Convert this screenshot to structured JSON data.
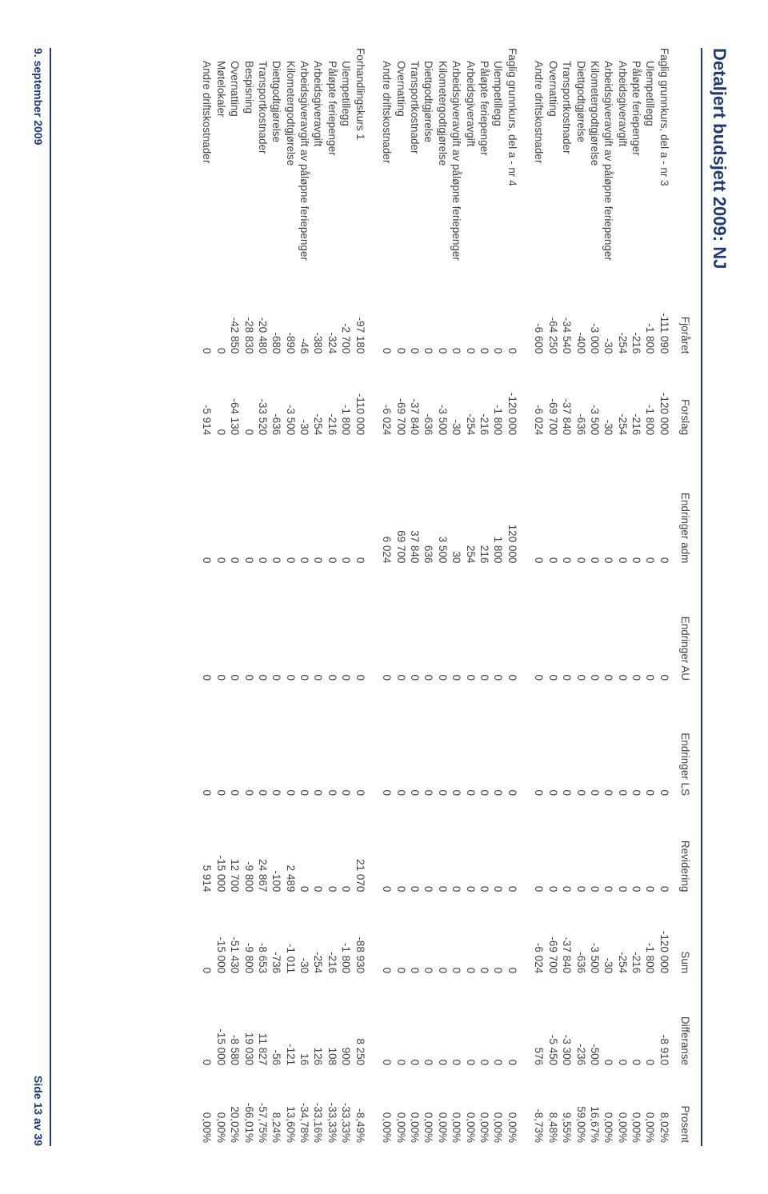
{
  "title": "Detaljert budsjett 2009:  NJ",
  "footer": {
    "date": "9. september 2009",
    "page": "Side 13 av 39"
  },
  "colors": {
    "title": "#1f3a74",
    "rule": "#1f3a74",
    "text": "#434343",
    "background": "#ffffff"
  },
  "typography": {
    "title_fontsize_pt": 16,
    "body_fontsize_pt": 10,
    "footer_fontsize_pt": 10,
    "font_family": "Verdana"
  },
  "columns": [
    {
      "key": "label",
      "header": ""
    },
    {
      "key": "fjor",
      "header": "Fjoråret"
    },
    {
      "key": "forslag",
      "header": "Forslag"
    },
    {
      "key": "e_adm",
      "header": "Endringer adm"
    },
    {
      "key": "e_au",
      "header": "Endringer AU"
    },
    {
      "key": "e_ls",
      "header": "Endringer LS"
    },
    {
      "key": "rev",
      "header": "Revidering"
    },
    {
      "key": "sum",
      "header": "Sum"
    },
    {
      "key": "diff",
      "header": "Differanse"
    },
    {
      "key": "pros",
      "header": "Prosent"
    }
  ],
  "sections": [
    {
      "title": "Faglig grunnkurs, del a - nr 3",
      "rows": [
        {
          "label": "Faglig grunnkurs, del a - nr 3",
          "is_section": true,
          "fjor": "-111 090",
          "forslag": "-120 000",
          "e_adm": "0",
          "e_au": "0",
          "e_ls": "0",
          "rev": "0",
          "sum": "-120 000",
          "diff": "-8 910",
          "pros": "8,02%"
        },
        {
          "label": "Ulempetillegg",
          "fjor": "-1 800",
          "forslag": "-1 800",
          "e_adm": "0",
          "e_au": "0",
          "e_ls": "0",
          "rev": "0",
          "sum": "-1 800",
          "diff": "0",
          "pros": "0,00%"
        },
        {
          "label": "Påløpte feriepenger",
          "fjor": "-216",
          "forslag": "-216",
          "e_adm": "0",
          "e_au": "0",
          "e_ls": "0",
          "rev": "0",
          "sum": "-216",
          "diff": "0",
          "pros": "0,00%"
        },
        {
          "label": "Arbeidsgiveravgift",
          "fjor": "-254",
          "forslag": "-254",
          "e_adm": "0",
          "e_au": "0",
          "e_ls": "0",
          "rev": "0",
          "sum": "-254",
          "diff": "0",
          "pros": "0,00%"
        },
        {
          "label": "Arbeidsgiveravgift av påløpne feriepenger",
          "fjor": "-30",
          "forslag": "-30",
          "e_adm": "0",
          "e_au": "0",
          "e_ls": "0",
          "rev": "0",
          "sum": "-30",
          "diff": "0",
          "pros": "0,00%"
        },
        {
          "label": "Kilometergodtgjørelse",
          "fjor": "-3 000",
          "forslag": "-3 500",
          "e_adm": "0",
          "e_au": "0",
          "e_ls": "0",
          "rev": "0",
          "sum": "-3 500",
          "diff": "-500",
          "pros": "16,67%"
        },
        {
          "label": "Diettgodtgjørelse",
          "fjor": "-400",
          "forslag": "-636",
          "e_adm": "0",
          "e_au": "0",
          "e_ls": "0",
          "rev": "0",
          "sum": "-636",
          "diff": "-236",
          "pros": "59,00%"
        },
        {
          "label": "Transportkostnader",
          "fjor": "-34 540",
          "forslag": "-37 840",
          "e_adm": "0",
          "e_au": "0",
          "e_ls": "0",
          "rev": "0",
          "sum": "-37 840",
          "diff": "-3 300",
          "pros": "9,55%"
        },
        {
          "label": "Overnatting",
          "fjor": "-64 250",
          "forslag": "-69 700",
          "e_adm": "0",
          "e_au": "0",
          "e_ls": "0",
          "rev": "0",
          "sum": "-69 700",
          "diff": "-5 450",
          "pros": "8,48%"
        },
        {
          "label": "Andre driftskostnader",
          "fjor": "-6 600",
          "forslag": "-6 024",
          "e_adm": "0",
          "e_au": "0",
          "e_ls": "0",
          "rev": "0",
          "sum": "-6 024",
          "diff": "576",
          "pros": "-8,73%"
        }
      ]
    },
    {
      "title": "Faglig grunnkurs, del a - nr 4",
      "rows": [
        {
          "label": "Faglig grunnkurs, del a - nr 4",
          "is_section": true,
          "fjor": "0",
          "forslag": "-120 000",
          "e_adm": "120 000",
          "e_au": "0",
          "e_ls": "0",
          "rev": "0",
          "sum": "0",
          "diff": "0",
          "pros": "0,00%"
        },
        {
          "label": "Ulempetillegg",
          "fjor": "0",
          "forslag": "-1 800",
          "e_adm": "1 800",
          "e_au": "0",
          "e_ls": "0",
          "rev": "0",
          "sum": "0",
          "diff": "0",
          "pros": "0,00%"
        },
        {
          "label": "Påløpte feriepenger",
          "fjor": "0",
          "forslag": "-216",
          "e_adm": "216",
          "e_au": "0",
          "e_ls": "0",
          "rev": "0",
          "sum": "0",
          "diff": "0",
          "pros": "0,00%"
        },
        {
          "label": "Arbeidsgiveravgift",
          "fjor": "0",
          "forslag": "-254",
          "e_adm": "254",
          "e_au": "0",
          "e_ls": "0",
          "rev": "0",
          "sum": "0",
          "diff": "0",
          "pros": "0,00%"
        },
        {
          "label": "Arbeidsgiveravgift av påløpne feriepenger",
          "fjor": "0",
          "forslag": "-30",
          "e_adm": "30",
          "e_au": "0",
          "e_ls": "0",
          "rev": "0",
          "sum": "0",
          "diff": "0",
          "pros": "0,00%"
        },
        {
          "label": "Kilometergodtgjørelse",
          "fjor": "0",
          "forslag": "-3 500",
          "e_adm": "3 500",
          "e_au": "0",
          "e_ls": "0",
          "rev": "0",
          "sum": "0",
          "diff": "0",
          "pros": "0,00%"
        },
        {
          "label": "Diettgodtgjørelse",
          "fjor": "0",
          "forslag": "-636",
          "e_adm": "636",
          "e_au": "0",
          "e_ls": "0",
          "rev": "0",
          "sum": "0",
          "diff": "0",
          "pros": "0,00%"
        },
        {
          "label": "Transportkostnader",
          "fjor": "0",
          "forslag": "-37 840",
          "e_adm": "37 840",
          "e_au": "0",
          "e_ls": "0",
          "rev": "0",
          "sum": "0",
          "diff": "0",
          "pros": "0,00%"
        },
        {
          "label": "Overnatting",
          "fjor": "0",
          "forslag": "-69 700",
          "e_adm": "69 700",
          "e_au": "0",
          "e_ls": "0",
          "rev": "0",
          "sum": "0",
          "diff": "0",
          "pros": "0,00%"
        },
        {
          "label": "Andre driftskostnader",
          "fjor": "0",
          "forslag": "-6 024",
          "e_adm": "6 024",
          "e_au": "0",
          "e_ls": "0",
          "rev": "0",
          "sum": "0",
          "diff": "0",
          "pros": "0,00%"
        }
      ]
    },
    {
      "title": "Forhandlingskurs 1",
      "rows": [
        {
          "label": "Forhandlingskurs 1",
          "is_section": true,
          "fjor": "-97 180",
          "forslag": "-110 000",
          "e_adm": "0",
          "e_au": "0",
          "e_ls": "0",
          "rev": "21 070",
          "sum": "-88 930",
          "diff": "8 250",
          "pros": "-8,49%"
        },
        {
          "label": "Ulempetillegg",
          "fjor": "-2 700",
          "forslag": "-1 800",
          "e_adm": "0",
          "e_au": "0",
          "e_ls": "0",
          "rev": "0",
          "sum": "-1 800",
          "diff": "900",
          "pros": "-33,33%"
        },
        {
          "label": "Påløpte feriepenger",
          "fjor": "-324",
          "forslag": "-216",
          "e_adm": "0",
          "e_au": "0",
          "e_ls": "0",
          "rev": "0",
          "sum": "-216",
          "diff": "108",
          "pros": "-33,33%"
        },
        {
          "label": "Arbeidsgiveravgift",
          "fjor": "-380",
          "forslag": "-254",
          "e_adm": "0",
          "e_au": "0",
          "e_ls": "0",
          "rev": "0",
          "sum": "-254",
          "diff": "126",
          "pros": "-33,16%"
        },
        {
          "label": "Arbeidsgiveravgift av påløpne feriepenger",
          "fjor": "-46",
          "forslag": "-30",
          "e_adm": "0",
          "e_au": "0",
          "e_ls": "0",
          "rev": "0",
          "sum": "-30",
          "diff": "16",
          "pros": "-34,78%"
        },
        {
          "label": "Kilometergodtgjørelse",
          "fjor": "-890",
          "forslag": "-3 500",
          "e_adm": "0",
          "e_au": "0",
          "e_ls": "0",
          "rev": "2 489",
          "sum": "-1 011",
          "diff": "-121",
          "pros": "13,60%"
        },
        {
          "label": "Diettgodtgjørelse",
          "fjor": "-680",
          "forslag": "-636",
          "e_adm": "0",
          "e_au": "0",
          "e_ls": "0",
          "rev": "-100",
          "sum": "-736",
          "diff": "-56",
          "pros": "8,24%"
        },
        {
          "label": "Transportkostnader",
          "fjor": "-20 480",
          "forslag": "-33 520",
          "e_adm": "0",
          "e_au": "0",
          "e_ls": "0",
          "rev": "24 867",
          "sum": "-8 653",
          "diff": "11 827",
          "pros": "-57,75%"
        },
        {
          "label": "Bespisning",
          "fjor": "-28 830",
          "forslag": "0",
          "e_adm": "0",
          "e_au": "0",
          "e_ls": "0",
          "rev": "-9 800",
          "sum": "-9 800",
          "diff": "19 030",
          "pros": "-66,01%"
        },
        {
          "label": "Overnatting",
          "fjor": "-42 850",
          "forslag": "-64 130",
          "e_adm": "0",
          "e_au": "0",
          "e_ls": "0",
          "rev": "12 700",
          "sum": "-51 430",
          "diff": "-8 580",
          "pros": "20,02%"
        },
        {
          "label": "Møtelokaler",
          "fjor": "0",
          "forslag": "0",
          "e_adm": "0",
          "e_au": "0",
          "e_ls": "0",
          "rev": "-15 000",
          "sum": "-15 000",
          "diff": "-15 000",
          "pros": "0,00%"
        },
        {
          "label": "Andre driftskostnader",
          "fjor": "0",
          "forslag": "-5 914",
          "e_adm": "0",
          "e_au": "0",
          "e_ls": "0",
          "rev": "5 914",
          "sum": "0",
          "diff": "0",
          "pros": "0,00%"
        }
      ]
    }
  ]
}
